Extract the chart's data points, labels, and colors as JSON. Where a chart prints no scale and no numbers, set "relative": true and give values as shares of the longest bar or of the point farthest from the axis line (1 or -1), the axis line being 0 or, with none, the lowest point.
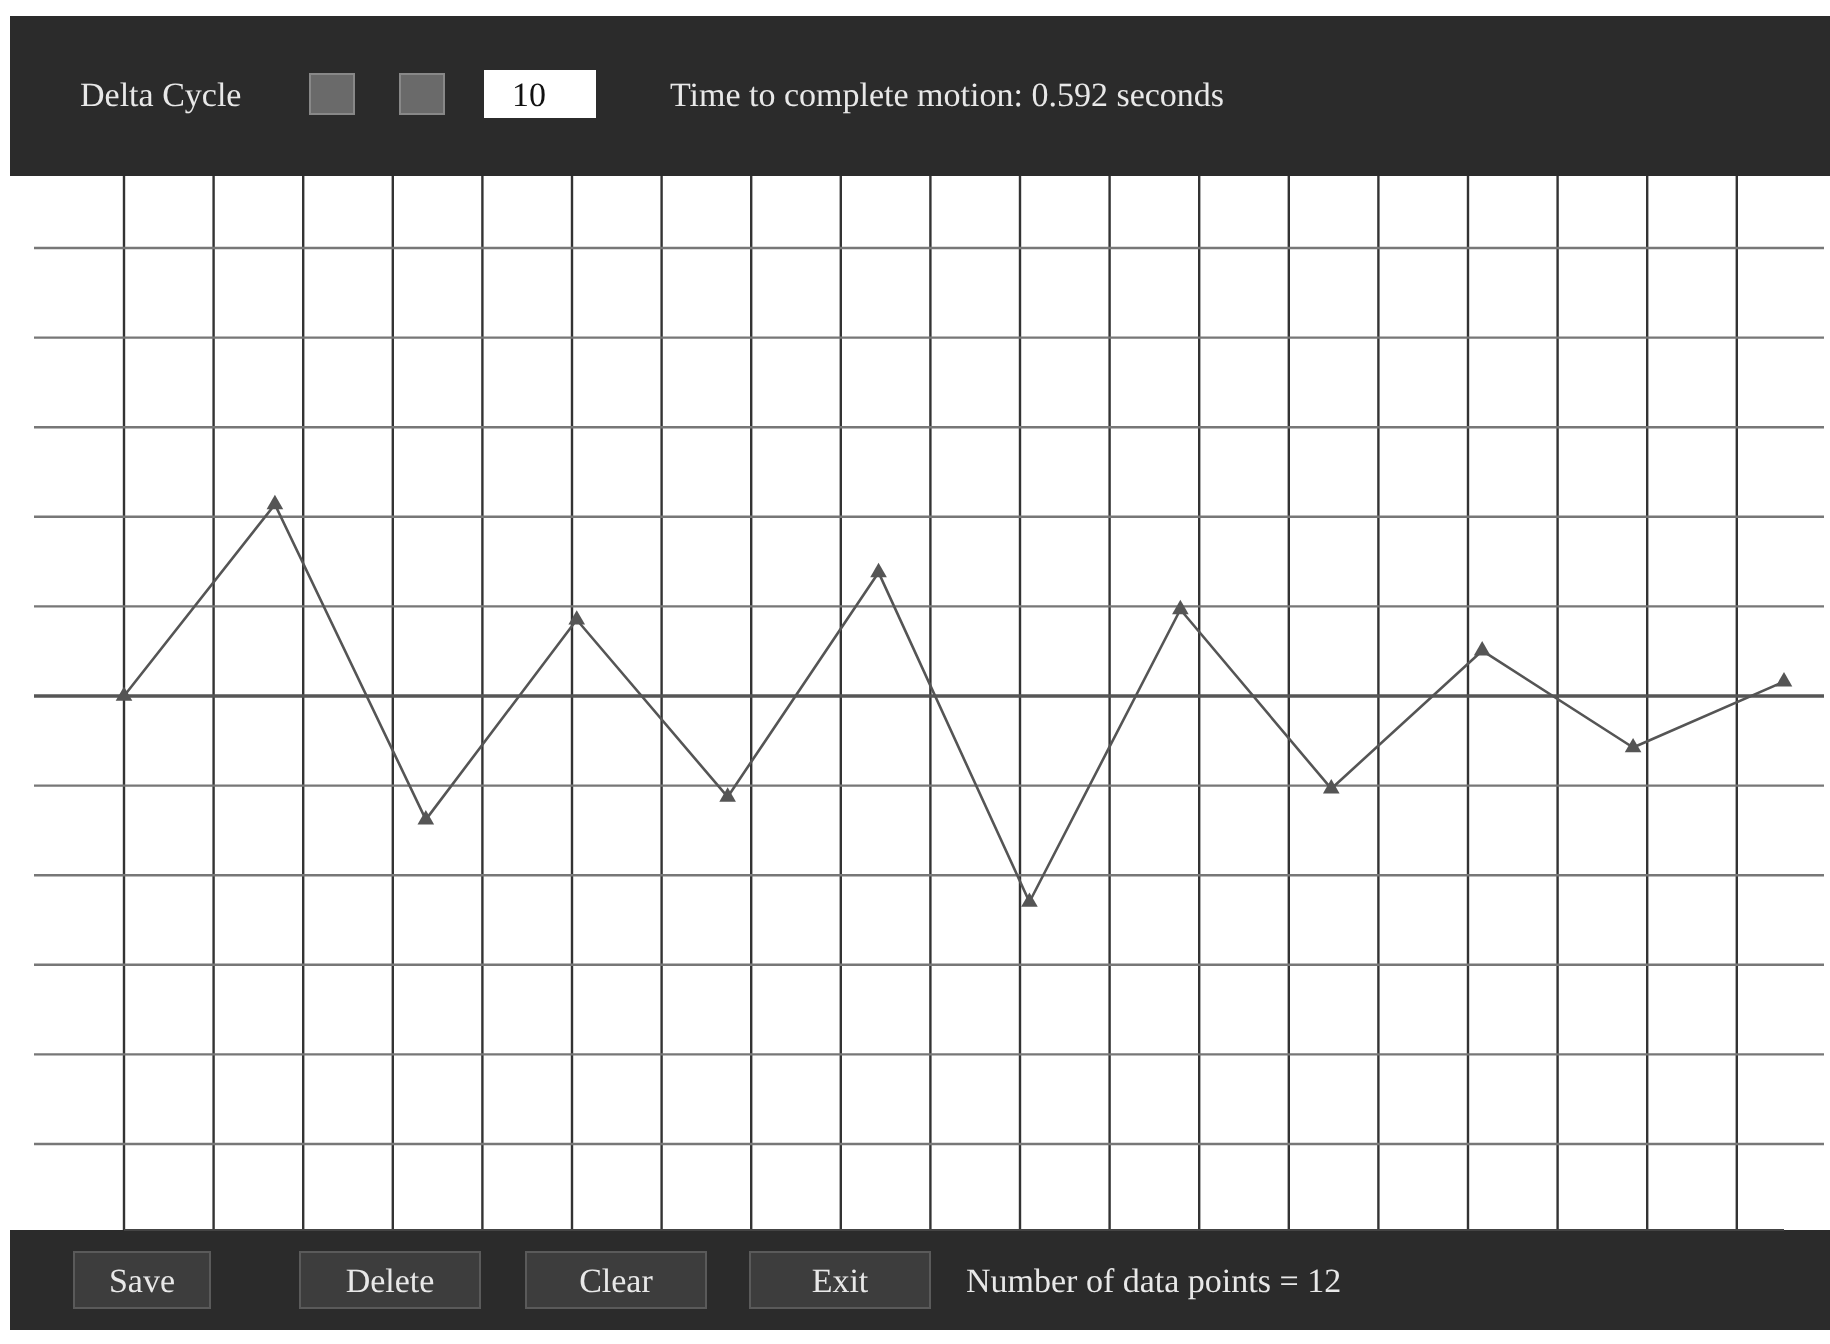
{
  "chart_data": {
    "type": "line",
    "relative": true,
    "categories": [
      null,
      null,
      null,
      null,
      null,
      null,
      null,
      null,
      null,
      null,
      null,
      null
    ],
    "series": [
      {
        "color": "#555555",
        "values": [
          0,
          0.93,
          -0.6,
          0.37,
          -0.49,
          0.6,
          -1,
          0.42,
          -0.45,
          0.22,
          -0.25,
          0.07
        ]
      }
    ],
    "marker": "triangle",
    "grid": true,
    "annotations": [
      "Delta Cycle",
      "10",
      "Time to complete motion: 0.592 seconds",
      "Save",
      "Delete",
      "Clear",
      "Exit",
      "Number of data points = 12"
    ]
  }
}
